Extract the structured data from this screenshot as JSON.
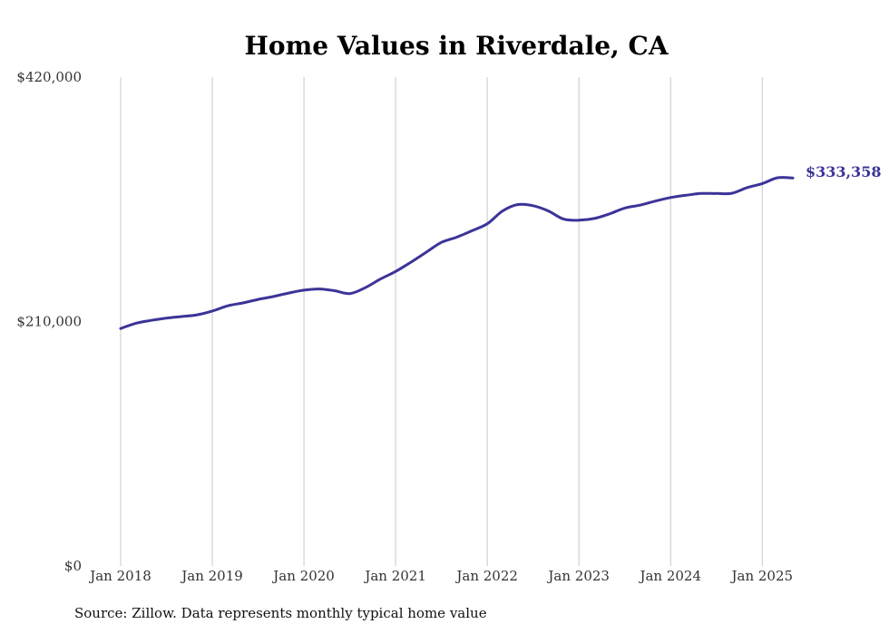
{
  "chart_data": {
    "type": "line",
    "title": "Home Values in Riverdale, CA",
    "xlabel": "",
    "ylabel": "",
    "ylim": [
      0,
      420000
    ],
    "xlim": [
      "2018-01",
      "2025-05"
    ],
    "y_tick_labels": [
      "$0",
      "$210,000",
      "$420,000"
    ],
    "y_tick_values": [
      0,
      210000,
      420000
    ],
    "x_tick_labels": [
      "Jan 2018",
      "Jan 2019",
      "Jan 2020",
      "Jan 2021",
      "Jan 2022",
      "Jan 2023",
      "Jan 2024",
      "Jan 2025"
    ],
    "x_tick_values": [
      "2018-01",
      "2019-01",
      "2020-01",
      "2021-01",
      "2022-01",
      "2023-01",
      "2024-01",
      "2025-01"
    ],
    "grid": "vertical",
    "legend": "none",
    "series": [
      {
        "color": "#3b3498",
        "x": [
          "2018-01",
          "2018-03",
          "2018-05",
          "2018-07",
          "2018-09",
          "2018-11",
          "2019-01",
          "2019-03",
          "2019-05",
          "2019-07",
          "2019-09",
          "2019-11",
          "2020-01",
          "2020-03",
          "2020-05",
          "2020-07",
          "2020-09",
          "2020-11",
          "2021-01",
          "2021-03",
          "2021-05",
          "2021-07",
          "2021-09",
          "2021-11",
          "2022-01",
          "2022-03",
          "2022-05",
          "2022-07",
          "2022-09",
          "2022-11",
          "2023-01",
          "2023-03",
          "2023-05",
          "2023-07",
          "2023-09",
          "2023-11",
          "2024-01",
          "2024-03",
          "2024-05",
          "2024-07",
          "2024-09",
          "2024-11",
          "2025-01",
          "2025-03",
          "2025-05"
        ],
        "values": [
          204000,
          208500,
          211000,
          213000,
          214300,
          215800,
          219000,
          223500,
          226000,
          229000,
          231500,
          234500,
          237000,
          238000,
          236500,
          234000,
          239000,
          246500,
          253000,
          261000,
          269500,
          278000,
          282500,
          288000,
          294000,
          305000,
          310500,
          309500,
          305000,
          298000,
          297000,
          298500,
          302500,
          307500,
          310000,
          313500,
          316500,
          318500,
          320000,
          320000,
          320200,
          325000,
          328500,
          333500,
          333358
        ]
      }
    ],
    "end_label": "$333,358",
    "source_note": "Source: Zillow. Data represents monthly typical home value"
  }
}
